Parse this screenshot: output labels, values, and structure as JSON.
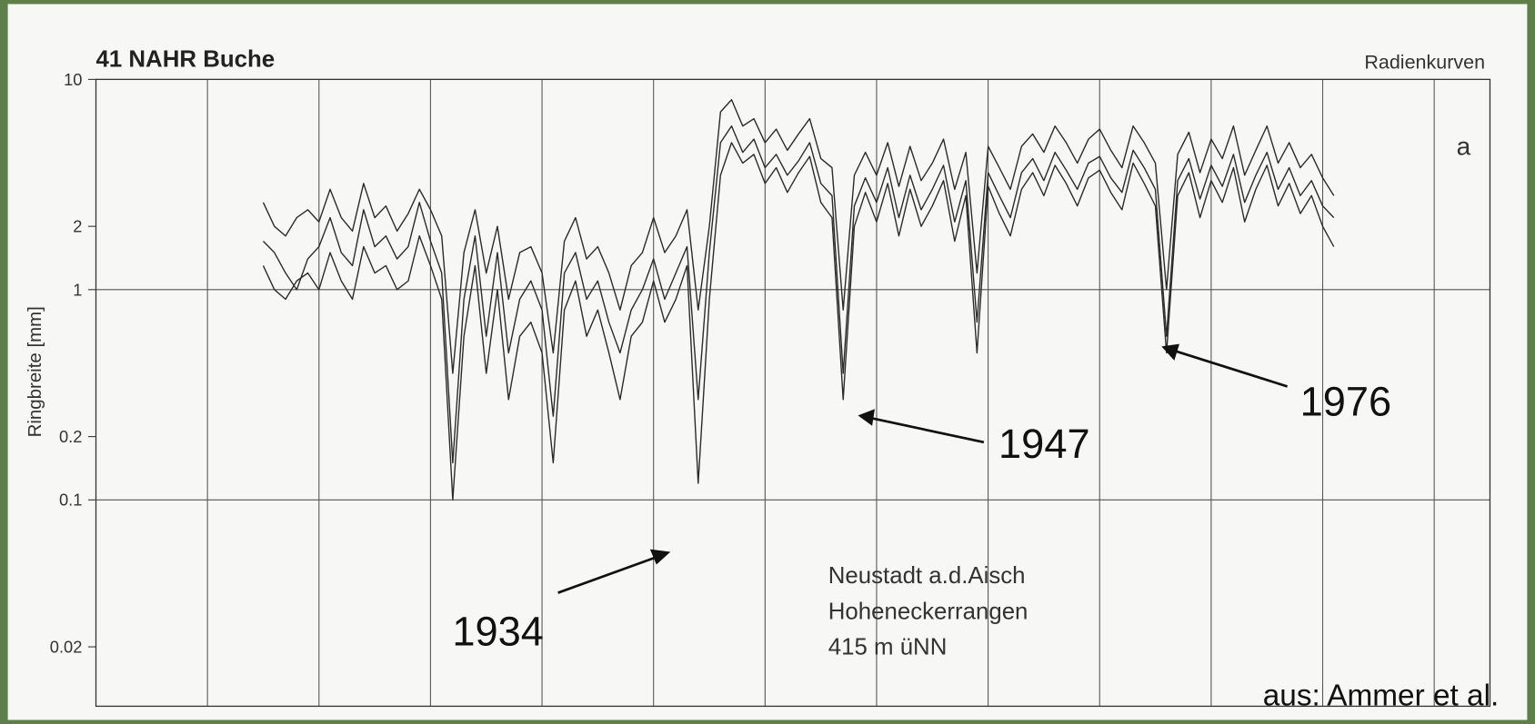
{
  "chart_data": {
    "type": "line",
    "title": "41 NAHR Buche",
    "subtitle": "Radienkurven",
    "panel_label": "a",
    "y_label": "Ringbreite [mm]",
    "y_scale": "log",
    "site": [
      "Neustadt a.d.Aisch",
      "Hoheneckerrangen",
      "415 m üNN"
    ],
    "annotations": [
      "1934",
      "1947",
      "1976"
    ],
    "source": "aus: Ammer et al.",
    "xlim": [
      1880,
      2005
    ],
    "xticks": [
      1890,
      1900,
      1910,
      1920,
      1930,
      1940,
      1950,
      1960,
      1970,
      1980,
      1990,
      2000
    ],
    "ylim": [
      0.01,
      10
    ],
    "yticks": [
      0.02,
      0.1,
      0.2,
      1,
      2,
      10
    ],
    "color": "#2b2b2b",
    "x": [
      1895,
      1896,
      1897,
      1898,
      1899,
      1900,
      1901,
      1902,
      1903,
      1904,
      1905,
      1906,
      1907,
      1908,
      1909,
      1910,
      1911,
      1912,
      1913,
      1914,
      1915,
      1916,
      1917,
      1918,
      1919,
      1920,
      1921,
      1922,
      1923,
      1924,
      1925,
      1926,
      1927,
      1928,
      1929,
      1930,
      1931,
      1932,
      1933,
      1934,
      1935,
      1936,
      1937,
      1938,
      1939,
      1940,
      1941,
      1942,
      1943,
      1944,
      1945,
      1946,
      1947,
      1948,
      1949,
      1950,
      1951,
      1952,
      1953,
      1954,
      1955,
      1956,
      1957,
      1958,
      1959,
      1960,
      1961,
      1962,
      1963,
      1964,
      1965,
      1966,
      1967,
      1968,
      1969,
      1970,
      1971,
      1972,
      1973,
      1974,
      1975,
      1976,
      1977,
      1978,
      1979,
      1980,
      1981,
      1982,
      1983,
      1984,
      1985,
      1986,
      1987,
      1988,
      1989,
      1990,
      1991
    ],
    "series": [
      {
        "values": [
          1.7,
          1.5,
          1.2,
          1.0,
          1.4,
          1.6,
          2.2,
          1.5,
          1.3,
          2.4,
          1.6,
          1.8,
          1.4,
          1.6,
          2.6,
          1.7,
          1.2,
          0.15,
          0.9,
          1.8,
          0.6,
          1.5,
          0.5,
          0.9,
          1.1,
          0.8,
          0.25,
          1.2,
          1.5,
          0.9,
          1.1,
          0.7,
          0.5,
          0.8,
          1.0,
          1.4,
          0.9,
          1.2,
          1.6,
          0.3,
          1.5,
          5.0,
          6.0,
          4.5,
          5.2,
          3.8,
          4.4,
          3.5,
          4.1,
          5.0,
          3.2,
          2.8,
          0.4,
          2.5,
          3.4,
          2.6,
          3.8,
          2.2,
          3.5,
          2.4,
          3.0,
          3.9,
          2.1,
          3.3,
          0.7,
          3.6,
          2.8,
          2.2,
          3.6,
          4.2,
          3.3,
          4.5,
          3.7,
          3.0,
          4.0,
          4.3,
          3.4,
          2.9,
          4.6,
          3.8,
          3.0,
          0.6,
          3.3,
          4.2,
          2.7,
          3.9,
          3.1,
          4.4,
          2.6,
          3.5,
          4.5,
          3.0,
          3.8,
          2.8,
          3.3,
          2.5,
          2.2
        ]
      },
      {
        "values": [
          1.3,
          1.0,
          0.9,
          1.1,
          1.2,
          1.0,
          1.5,
          1.1,
          0.9,
          1.6,
          1.2,
          1.3,
          1.0,
          1.1,
          1.8,
          1.3,
          0.9,
          0.1,
          0.6,
          1.3,
          0.4,
          1.0,
          0.3,
          0.6,
          0.7,
          0.5,
          0.15,
          0.8,
          1.1,
          0.6,
          0.8,
          0.5,
          0.3,
          0.6,
          0.7,
          1.1,
          0.7,
          0.9,
          1.3,
          0.12,
          0.9,
          3.5,
          5.0,
          4.0,
          4.4,
          3.2,
          3.8,
          2.9,
          3.6,
          4.3,
          2.6,
          2.2,
          0.3,
          2.0,
          2.9,
          2.1,
          3.2,
          1.8,
          3.0,
          2.0,
          2.5,
          3.3,
          1.7,
          2.8,
          0.5,
          3.1,
          2.3,
          1.8,
          3.0,
          3.6,
          2.8,
          3.9,
          3.2,
          2.5,
          3.4,
          3.7,
          2.9,
          2.4,
          4.0,
          3.2,
          2.5,
          0.5,
          2.8,
          3.6,
          2.2,
          3.3,
          2.6,
          3.8,
          2.1,
          3.0,
          3.9,
          2.5,
          3.2,
          2.3,
          2.8,
          2.0,
          1.6
        ]
      },
      {
        "values": [
          2.6,
          2.0,
          1.8,
          2.2,
          2.4,
          2.1,
          3.0,
          2.2,
          1.9,
          3.2,
          2.2,
          2.5,
          1.9,
          2.3,
          3.0,
          2.4,
          1.8,
          0.4,
          1.5,
          2.4,
          1.2,
          2.0,
          0.9,
          1.5,
          1.6,
          1.2,
          0.5,
          1.7,
          2.2,
          1.4,
          1.6,
          1.2,
          0.8,
          1.3,
          1.5,
          2.2,
          1.5,
          1.8,
          2.4,
          0.8,
          2.0,
          7.0,
          8.0,
          6.0,
          6.5,
          5.0,
          5.8,
          4.6,
          5.5,
          6.5,
          4.2,
          3.8,
          0.8,
          3.5,
          4.5,
          3.5,
          5.0,
          3.1,
          4.8,
          3.3,
          4.0,
          5.2,
          3.0,
          4.5,
          1.2,
          4.8,
          3.8,
          3.0,
          4.8,
          5.5,
          4.5,
          6.0,
          5.0,
          4.0,
          5.2,
          5.8,
          4.6,
          3.8,
          6.0,
          5.0,
          4.0,
          1.0,
          4.4,
          5.6,
          3.6,
          5.2,
          4.2,
          6.0,
          3.5,
          4.6,
          6.0,
          4.0,
          5.0,
          3.8,
          4.4,
          3.4,
          2.8
        ]
      }
    ]
  }
}
